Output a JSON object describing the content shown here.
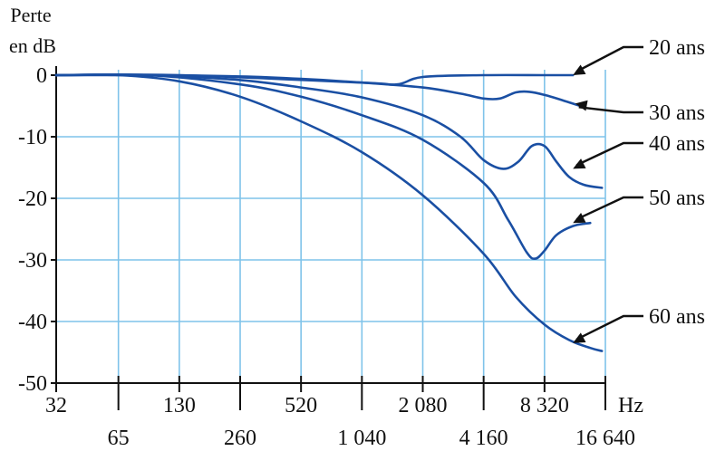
{
  "chart_data": {
    "type": "line",
    "ylabel": [
      "Perte",
      "en dB"
    ],
    "x_unit": "Hz",
    "x_ticks_top": [
      "32",
      "130",
      "520",
      "2 080",
      "8 320"
    ],
    "x_ticks_bottom": [
      "65",
      "260",
      "1 040",
      "4 160",
      "16 640"
    ],
    "x_tick_values": [
      32,
      65,
      130,
      260,
      520,
      1040,
      2080,
      4160,
      8320,
      16640
    ],
    "y_ticks": [
      "0",
      "-10",
      "-20",
      "-30",
      "-40",
      "-50"
    ],
    "y_tick_values": [
      0,
      -10,
      -20,
      -30,
      -40,
      -50
    ],
    "xlim": [
      32,
      16640
    ],
    "ylim": [
      -50,
      0
    ],
    "x_scale": "log",
    "grid": true,
    "colors": {
      "line": "#1a4fa3",
      "grid": "#7fc3ea",
      "axis": "#111111",
      "arrow": "#111111"
    },
    "series": [
      {
        "name": "20 ans",
        "x": [
          32,
          130,
          1040,
          1550,
          2080,
          4160,
          8320,
          11500
        ],
        "y": [
          0,
          0,
          -1.2,
          -1.5,
          -0.3,
          0,
          0,
          0
        ]
      },
      {
        "name": "30 ans",
        "x": [
          32,
          100,
          260,
          520,
          1040,
          2080,
          3200,
          4160,
          5000,
          6000,
          7000,
          8320,
          10500,
          12500
        ],
        "y": [
          0,
          0,
          -0.2,
          -0.6,
          -1.2,
          -2.0,
          -3.0,
          -3.8,
          -3.8,
          -2.8,
          -2.7,
          -3.2,
          -4.2,
          -5.0
        ]
      },
      {
        "name": "40 ans",
        "x": [
          32,
          90,
          260,
          520,
          1040,
          2080,
          3200,
          4160,
          5200,
          6200,
          7200,
          8320,
          9500,
          11000,
          13000,
          16000
        ],
        "y": [
          0,
          0,
          -0.8,
          -2.0,
          -3.6,
          -6.5,
          -10.0,
          -13.8,
          -15.2,
          -14.0,
          -11.5,
          -11.5,
          -14.0,
          -16.5,
          -17.8,
          -18.3
        ]
      },
      {
        "name": "50 ans",
        "x": [
          32,
          90,
          260,
          520,
          1040,
          2080,
          4160,
          5500,
          6800,
          7500,
          8320,
          9500,
          11500,
          14000
        ],
        "y": [
          0,
          0,
          -1.5,
          -3.5,
          -6.5,
          -10.5,
          -17.5,
          -23.5,
          -28.8,
          -29.8,
          -28.5,
          -26.0,
          -24.5,
          -24.0
        ]
      },
      {
        "name": "60 ans",
        "x": [
          32,
          65,
          130,
          260,
          520,
          1040,
          2080,
          4160,
          6000,
          8320,
          11000,
          14000,
          16000
        ],
        "y": [
          0,
          0,
          -1.0,
          -3.5,
          -7.5,
          -12.5,
          -19.5,
          -29.0,
          -36.0,
          -40.5,
          -43.0,
          -44.3,
          -44.8
        ]
      }
    ],
    "legend": [
      {
        "label": "20 ans",
        "arrow_to": {
          "x": 11500,
          "y": 0
        }
      },
      {
        "label": "30 ans",
        "arrow_to": {
          "x": 11800,
          "y": -4.6
        }
      },
      {
        "label": "40 ans",
        "arrow_to": {
          "x": 11500,
          "y": -15.2
        }
      },
      {
        "label": "50 ans",
        "arrow_to": {
          "x": 11500,
          "y": -24.0
        }
      },
      {
        "label": "60 ans",
        "arrow_to": {
          "x": 11500,
          "y": -43.5
        }
      }
    ]
  }
}
